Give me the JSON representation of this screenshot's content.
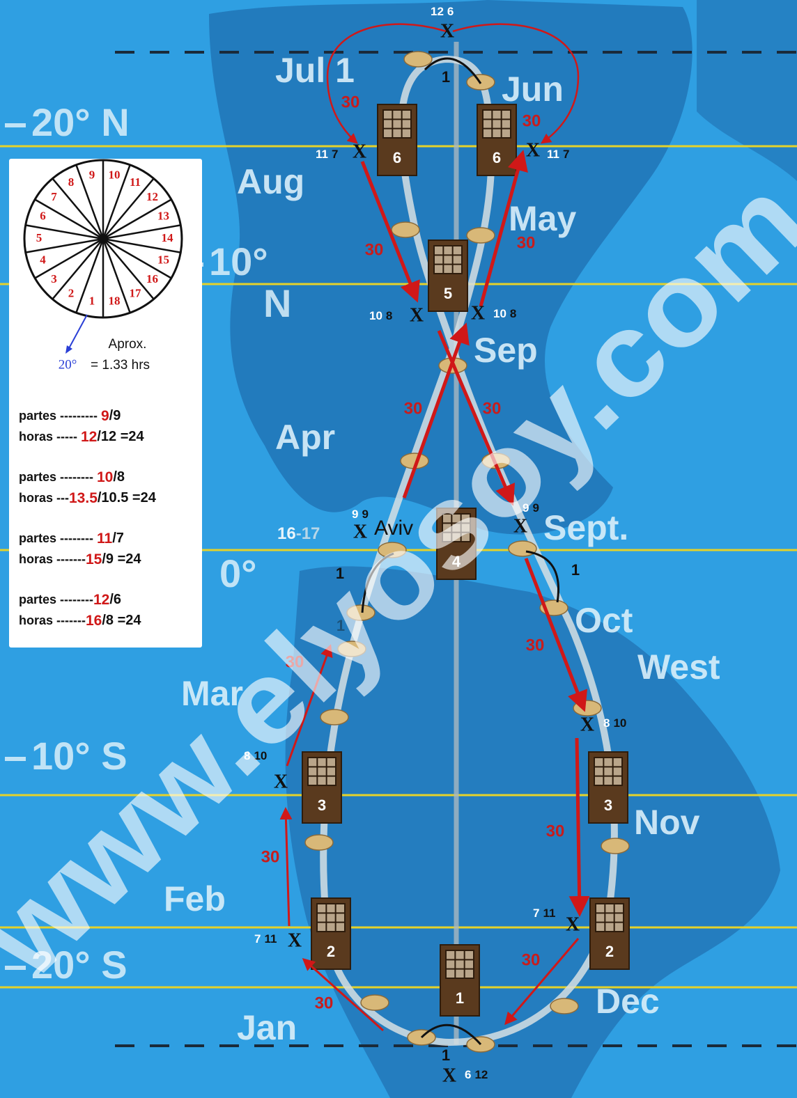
{
  "latitudes": [
    "20° N",
    "10°",
    "N",
    "0°",
    "10° S",
    "20° S"
  ],
  "months": [
    "Jul 1",
    "Jun",
    "Aug",
    "May",
    "Sep",
    "Apr",
    "Sept.",
    "Oct",
    "West",
    "Mar",
    "Nov",
    "Feb",
    "Dec",
    "Jan"
  ],
  "doors": [
    "6",
    "6",
    "5",
    "4",
    "3",
    "3",
    "2",
    "2",
    "1"
  ],
  "x_marks": [
    {
      "mark": "X",
      "first": "12",
      "second": "6"
    },
    {
      "mark": "X",
      "first": "11",
      "second": "7"
    },
    {
      "mark": "X",
      "first": "11",
      "second": "7"
    },
    {
      "mark": "X",
      "first": "10",
      "second": "8"
    },
    {
      "mark": "X",
      "first": "10",
      "second": "8"
    },
    {
      "mark": "X",
      "first": "9",
      "second": "9"
    },
    {
      "mark": "X",
      "first": "9",
      "second": "9"
    },
    {
      "mark": "X",
      "first": "8",
      "second": "10"
    },
    {
      "mark": "X",
      "first": "8",
      "second": "10"
    },
    {
      "mark": "X",
      "first": "7",
      "second": "11"
    },
    {
      "mark": "X",
      "first": "7",
      "second": "11"
    },
    {
      "mark": "X",
      "first": "6",
      "second": "12"
    }
  ],
  "day_counts": [
    "30",
    "30",
    "30",
    "30",
    "30",
    "30",
    "30",
    "30",
    "30",
    "30",
    "30",
    "30"
  ],
  "steps": [
    "1",
    "1",
    "1",
    "1",
    "1"
  ],
  "aviv": "Aviv",
  "day_range": {
    "start": "16",
    "end": "-17"
  },
  "watermark": "www.elyosoy.com",
  "legend": {
    "wheel": [
      "1",
      "2",
      "3",
      "4",
      "5",
      "6",
      "7",
      "8",
      "9",
      "10",
      "11",
      "12",
      "13",
      "14",
      "15",
      "16",
      "17",
      "18"
    ],
    "approx": "Aprox.",
    "degrees": "20°",
    "hours": "= 1.33 hrs",
    "rows": [
      {
        "partes_label": "partes --------- ",
        "partes_red": "9",
        "partes_rest": "/9",
        "horas_label": "horas ----- ",
        "horas_red": "12",
        "horas_rest": "/12 =24"
      },
      {
        "partes_label": "partes -------- ",
        "partes_red": "10",
        "partes_rest": "/8",
        "horas_label": "horas ---",
        "horas_red": "13.5",
        "horas_rest": "/10.5 =24"
      },
      {
        "partes_label": "partes -------- ",
        "partes_red": "11",
        "partes_rest": "/7",
        "horas_label": "horas -------",
        "horas_red": "15",
        "horas_rest": "/9 =24"
      },
      {
        "partes_label": "partes --------",
        "partes_red": "12",
        "partes_rest": "/6",
        "horas_label": "horas -------",
        "horas_red": "16",
        "horas_rest": "/8 =24"
      }
    ]
  }
}
